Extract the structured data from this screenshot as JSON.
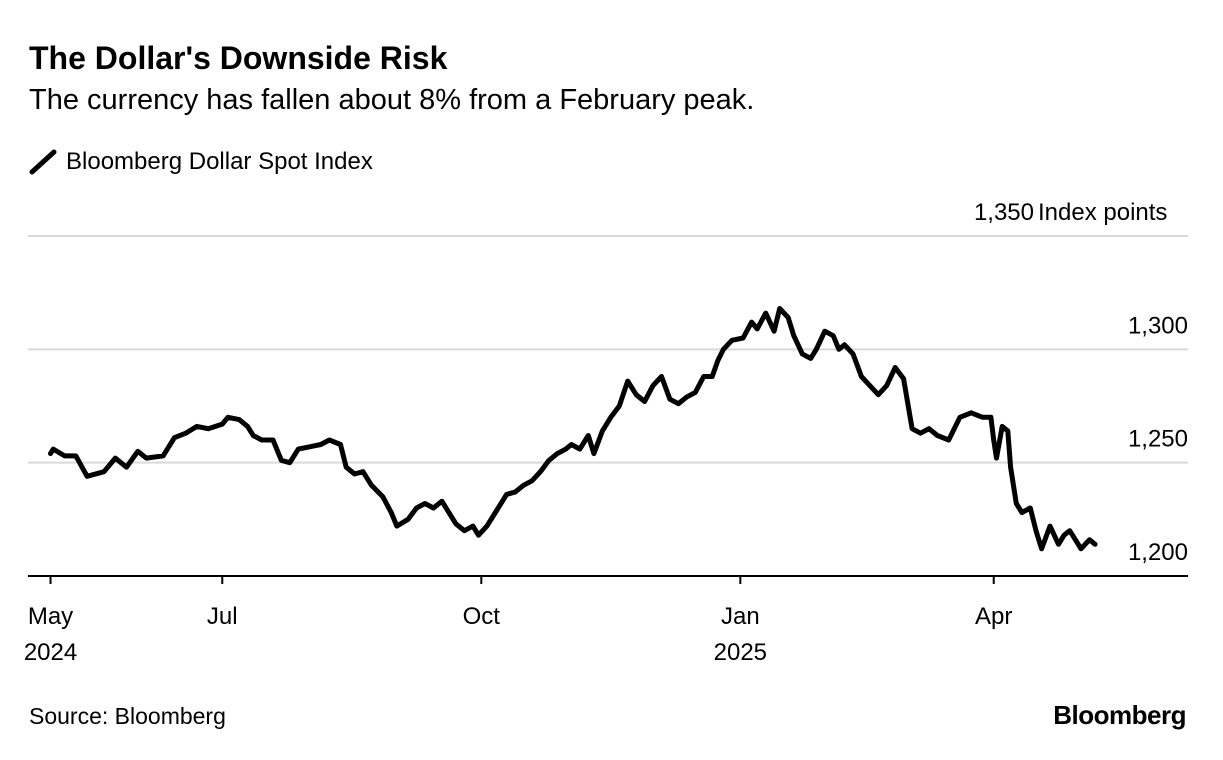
{
  "header": {
    "title": "The Dollar's Downside Risk",
    "subtitle": "The currency has fallen about 8% from a February peak."
  },
  "footer": {
    "source": "Source: Bloomberg",
    "logo": "Bloomberg"
  },
  "colors": {
    "line": "#000000",
    "grid": "#d9d9d9",
    "axis": "#000000"
  },
  "chart_data": {
    "type": "line",
    "series": [
      {
        "name": "Bloomberg Dollar Spot Index",
        "points": [
          [
            "2024-05-01",
            1254
          ],
          [
            "2024-05-02",
            1256
          ],
          [
            "2024-05-06",
            1253
          ],
          [
            "2024-05-10",
            1253
          ],
          [
            "2024-05-14",
            1244
          ],
          [
            "2024-05-20",
            1246
          ],
          [
            "2024-05-24",
            1252
          ],
          [
            "2024-05-28",
            1248
          ],
          [
            "2024-06-01",
            1255
          ],
          [
            "2024-06-04",
            1252
          ],
          [
            "2024-06-10",
            1253
          ],
          [
            "2024-06-14",
            1261
          ],
          [
            "2024-06-18",
            1263
          ],
          [
            "2024-06-22",
            1266
          ],
          [
            "2024-06-26",
            1265
          ],
          [
            "2024-07-01",
            1267
          ],
          [
            "2024-07-03",
            1270
          ],
          [
            "2024-07-07",
            1269
          ],
          [
            "2024-07-10",
            1266
          ],
          [
            "2024-07-12",
            1262
          ],
          [
            "2024-07-15",
            1260
          ],
          [
            "2024-07-19",
            1260
          ],
          [
            "2024-07-22",
            1251
          ],
          [
            "2024-07-25",
            1250
          ],
          [
            "2024-07-28",
            1256
          ],
          [
            "2024-08-01",
            1257
          ],
          [
            "2024-08-05",
            1258
          ],
          [
            "2024-08-08",
            1260
          ],
          [
            "2024-08-12",
            1258
          ],
          [
            "2024-08-14",
            1248
          ],
          [
            "2024-08-17",
            1245
          ],
          [
            "2024-08-20",
            1246
          ],
          [
            "2024-08-23",
            1240
          ],
          [
            "2024-08-27",
            1235
          ],
          [
            "2024-08-30",
            1228
          ],
          [
            "2024-09-01",
            1222
          ],
          [
            "2024-09-05",
            1225
          ],
          [
            "2024-09-08",
            1230
          ],
          [
            "2024-09-11",
            1232
          ],
          [
            "2024-09-14",
            1230
          ],
          [
            "2024-09-17",
            1233
          ],
          [
            "2024-09-20",
            1227
          ],
          [
            "2024-09-22",
            1223
          ],
          [
            "2024-09-25",
            1220
          ],
          [
            "2024-09-28",
            1222
          ],
          [
            "2024-09-30",
            1218
          ],
          [
            "2024-10-03",
            1222
          ],
          [
            "2024-10-06",
            1228
          ],
          [
            "2024-10-10",
            1236
          ],
          [
            "2024-10-13",
            1237
          ],
          [
            "2024-10-16",
            1240
          ],
          [
            "2024-10-19",
            1242
          ],
          [
            "2024-10-22",
            1246
          ],
          [
            "2024-10-25",
            1251
          ],
          [
            "2024-10-28",
            1254
          ],
          [
            "2024-10-31",
            1256
          ],
          [
            "2024-11-02",
            1258
          ],
          [
            "2024-11-05",
            1256
          ],
          [
            "2024-11-08",
            1262
          ],
          [
            "2024-11-10",
            1254
          ],
          [
            "2024-11-13",
            1264
          ],
          [
            "2024-11-16",
            1270
          ],
          [
            "2024-11-19",
            1275
          ],
          [
            "2024-11-22",
            1286
          ],
          [
            "2024-11-25",
            1280
          ],
          [
            "2024-11-28",
            1277
          ],
          [
            "2024-12-01",
            1284
          ],
          [
            "2024-12-04",
            1288
          ],
          [
            "2024-12-07",
            1278
          ],
          [
            "2024-12-10",
            1276
          ],
          [
            "2024-12-13",
            1279
          ],
          [
            "2024-12-16",
            1281
          ],
          [
            "2024-12-19",
            1288
          ],
          [
            "2024-12-22",
            1288
          ],
          [
            "2024-12-24",
            1295
          ],
          [
            "2024-12-26",
            1300
          ],
          [
            "2024-12-29",
            1304
          ],
          [
            "2025-01-02",
            1305
          ],
          [
            "2025-01-05",
            1312
          ],
          [
            "2025-01-07",
            1309
          ],
          [
            "2025-01-10",
            1316
          ],
          [
            "2025-01-13",
            1308
          ],
          [
            "2025-01-15",
            1318
          ],
          [
            "2025-01-18",
            1314
          ],
          [
            "2025-01-20",
            1306
          ],
          [
            "2025-01-23",
            1298
          ],
          [
            "2025-01-26",
            1296
          ],
          [
            "2025-01-28",
            1300
          ],
          [
            "2025-01-31",
            1308
          ],
          [
            "2025-02-03",
            1306
          ],
          [
            "2025-02-05",
            1300
          ],
          [
            "2025-02-07",
            1302
          ],
          [
            "2025-02-10",
            1298
          ],
          [
            "2025-02-13",
            1288
          ],
          [
            "2025-02-16",
            1284
          ],
          [
            "2025-02-19",
            1280
          ],
          [
            "2025-02-22",
            1284
          ],
          [
            "2025-02-25",
            1292
          ],
          [
            "2025-02-28",
            1287
          ],
          [
            "2025-03-03",
            1265
          ],
          [
            "2025-03-06",
            1263
          ],
          [
            "2025-03-09",
            1265
          ],
          [
            "2025-03-12",
            1262
          ],
          [
            "2025-03-16",
            1260
          ],
          [
            "2025-03-20",
            1270
          ],
          [
            "2025-03-24",
            1272
          ],
          [
            "2025-03-28",
            1270
          ],
          [
            "2025-03-31",
            1270
          ],
          [
            "2025-04-01",
            1260
          ],
          [
            "2025-04-02",
            1252
          ],
          [
            "2025-04-04",
            1266
          ],
          [
            "2025-04-06",
            1264
          ],
          [
            "2025-04-07",
            1248
          ],
          [
            "2025-04-09",
            1232
          ],
          [
            "2025-04-11",
            1228
          ],
          [
            "2025-04-14",
            1230
          ],
          [
            "2025-04-16",
            1220
          ],
          [
            "2025-04-18",
            1212
          ],
          [
            "2025-04-21",
            1222
          ],
          [
            "2025-04-24",
            1214
          ],
          [
            "2025-04-26",
            1218
          ],
          [
            "2025-04-28",
            1220
          ],
          [
            "2025-04-30",
            1216
          ],
          [
            "2025-05-02",
            1212
          ],
          [
            "2025-05-05",
            1216
          ],
          [
            "2025-05-07",
            1214
          ]
        ]
      }
    ],
    "y_unit_label": "Index points",
    "y_ticks": [
      {
        "value": 1200,
        "label": "1,200"
      },
      {
        "value": 1250,
        "label": "1,250"
      },
      {
        "value": 1300,
        "label": "1,300"
      },
      {
        "value": 1350,
        "label": "1,350"
      }
    ],
    "ylim": [
      1200,
      1350
    ],
    "xlim": [
      "2024-04-23",
      "2025-06-09"
    ],
    "x_ticks": [
      {
        "date": "2024-05-01",
        "label": "May",
        "year": "2024"
      },
      {
        "date": "2024-07-01",
        "label": "Jul",
        "year": ""
      },
      {
        "date": "2024-10-01",
        "label": "Oct",
        "year": ""
      },
      {
        "date": "2025-01-01",
        "label": "Jan",
        "year": "2025"
      },
      {
        "date": "2025-04-01",
        "label": "Apr",
        "year": ""
      }
    ],
    "grid": true,
    "legend_position": "top-left"
  }
}
